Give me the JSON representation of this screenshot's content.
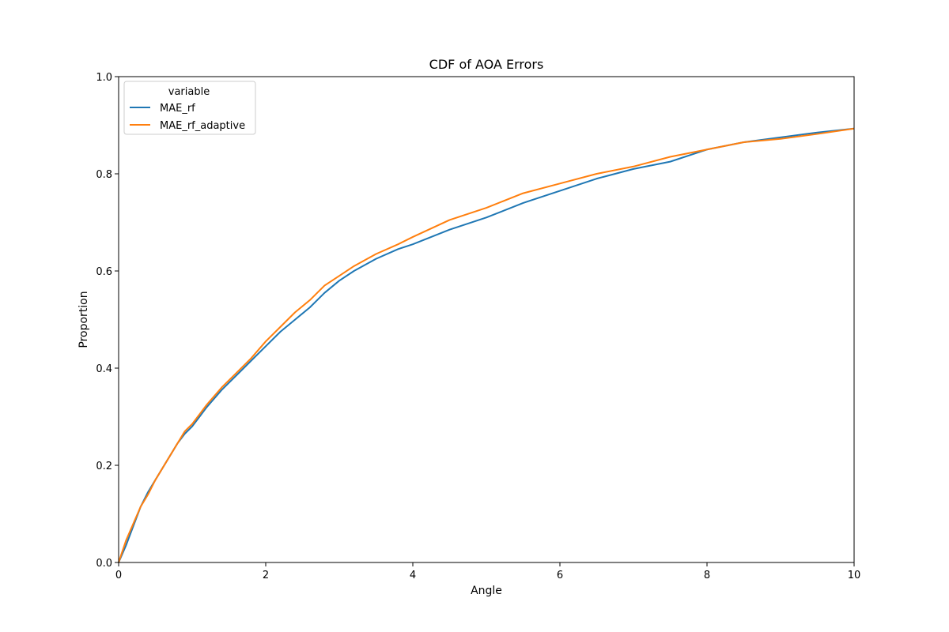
{
  "chart_data": {
    "type": "line",
    "title": "CDF of AOA Errors",
    "xlabel": "Angle",
    "ylabel": "Proportion",
    "xlim": [
      0,
      10
    ],
    "ylim": [
      0,
      1
    ],
    "xticks": [
      0,
      2,
      4,
      6,
      8,
      10
    ],
    "xtick_labels": [
      "0",
      "2",
      "4",
      "6",
      "8",
      "10"
    ],
    "yticks": [
      0.0,
      0.2,
      0.4,
      0.6,
      0.8,
      1.0
    ],
    "ytick_labels": [
      "0.0",
      "0.2",
      "0.4",
      "0.6",
      "0.8",
      "1.0"
    ],
    "grid": false,
    "legend": {
      "title": "variable",
      "placement": "top-left"
    },
    "x": [
      0,
      0.1,
      0.2,
      0.3,
      0.4,
      0.5,
      0.6,
      0.7,
      0.8,
      0.9,
      1.0,
      1.2,
      1.4,
      1.6,
      1.8,
      2.0,
      2.2,
      2.4,
      2.6,
      2.8,
      3.0,
      3.2,
      3.5,
      3.8,
      4.0,
      4.5,
      5.0,
      5.5,
      6.0,
      6.5,
      7.0,
      7.5,
      8.0,
      8.5,
      9.0,
      9.5,
      10.0
    ],
    "series": [
      {
        "name": "MAE_rf",
        "color": "#1f77b4",
        "values": [
          0.0,
          0.035,
          0.075,
          0.115,
          0.145,
          0.17,
          0.195,
          0.22,
          0.245,
          0.265,
          0.28,
          0.32,
          0.355,
          0.385,
          0.415,
          0.445,
          0.475,
          0.5,
          0.525,
          0.555,
          0.58,
          0.6,
          0.625,
          0.645,
          0.655,
          0.685,
          0.71,
          0.74,
          0.765,
          0.79,
          0.81,
          0.825,
          0.85,
          0.865,
          0.875,
          0.885,
          0.893
        ]
      },
      {
        "name": "MAE_rf_adaptive",
        "color": "#ff7f0e",
        "values": [
          0.0,
          0.045,
          0.08,
          0.115,
          0.14,
          0.17,
          0.195,
          0.22,
          0.245,
          0.27,
          0.285,
          0.325,
          0.36,
          0.39,
          0.42,
          0.455,
          0.485,
          0.515,
          0.54,
          0.57,
          0.59,
          0.61,
          0.635,
          0.655,
          0.67,
          0.705,
          0.73,
          0.76,
          0.78,
          0.8,
          0.815,
          0.835,
          0.85,
          0.865,
          0.872,
          0.882,
          0.893
        ]
      }
    ]
  }
}
